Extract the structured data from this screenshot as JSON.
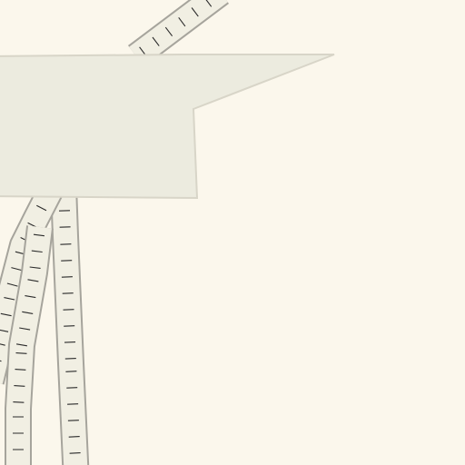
{
  "map": {
    "colors": {
      "background": "#fbf7ec",
      "building_fill": "#ecebdf",
      "building_stroke": "#d8d5c8",
      "rail_fill": "#f1efe3",
      "rail_casing": "#a6a49c",
      "rail_tie": "#2b2b2b"
    },
    "features": [
      {
        "kind": "building",
        "name": "platform-building"
      },
      {
        "kind": "railway",
        "name": "rail-track-northeast"
      },
      {
        "kind": "railway",
        "name": "rail-track-south-right"
      },
      {
        "kind": "railway",
        "name": "rail-track-south-left"
      },
      {
        "kind": "railway",
        "name": "rail-track-south-left-inner"
      }
    ]
  }
}
